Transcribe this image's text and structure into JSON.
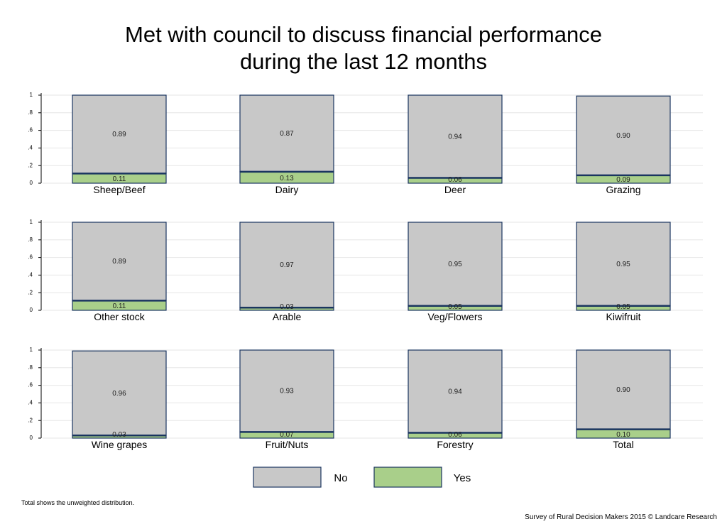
{
  "title_line1": "Met with council to discuss financial performance",
  "title_line2": "during the last 12 months",
  "footnote": "Total shows the unweighted distribution.",
  "source": "Survey of Rural Decision Makers 2015 © Landcare Research",
  "chart_data": {
    "type": "bar",
    "stacked": true,
    "layout": "small-multiples 3x4",
    "ylim": [
      0,
      1
    ],
    "yticks": [
      0,
      0.2,
      0.4,
      0.6,
      0.8,
      1
    ],
    "ytick_labels": [
      "0",
      ".2",
      ".4",
      ".6",
      ".8",
      "1"
    ],
    "grid": true,
    "legend_position": "bottom",
    "colors": {
      "No": "#c8c8c8",
      "Yes": "#a9cf8a",
      "border": "#1a3560"
    },
    "legend": [
      "No",
      "Yes"
    ],
    "panels": [
      {
        "label": "Sheep/Beef",
        "yes": 0.11,
        "no": 0.89,
        "yes_label": "0.11",
        "no_label": "0.89"
      },
      {
        "label": "Dairy",
        "yes": 0.13,
        "no": 0.87,
        "yes_label": "0.13",
        "no_label": "0.87"
      },
      {
        "label": "Deer",
        "yes": 0.06,
        "no": 0.94,
        "yes_label": "0.06",
        "no_label": "0.94"
      },
      {
        "label": "Grazing",
        "yes": 0.09,
        "no": 0.9,
        "yes_label": "0.09",
        "no_label": "0.90"
      },
      {
        "label": "Other stock",
        "yes": 0.11,
        "no": 0.89,
        "yes_label": "0.11",
        "no_label": "0.89"
      },
      {
        "label": "Arable",
        "yes": 0.03,
        "no": 0.97,
        "yes_label": "0.03",
        "no_label": "0.97"
      },
      {
        "label": "Veg/Flowers",
        "yes": 0.05,
        "no": 0.95,
        "yes_label": "0.05",
        "no_label": "0.95"
      },
      {
        "label": "Kiwifruit",
        "yes": 0.05,
        "no": 0.95,
        "yes_label": "0.05",
        "no_label": "0.95"
      },
      {
        "label": "Wine grapes",
        "yes": 0.03,
        "no": 0.96,
        "yes_label": "0.03",
        "no_label": "0.96"
      },
      {
        "label": "Fruit/Nuts",
        "yes": 0.07,
        "no": 0.93,
        "yes_label": "0.07",
        "no_label": "0.93"
      },
      {
        "label": "Forestry",
        "yes": 0.06,
        "no": 0.94,
        "yes_label": "0.06",
        "no_label": "0.94"
      },
      {
        "label": "Total",
        "yes": 0.1,
        "no": 0.9,
        "yes_label": "0.10",
        "no_label": "0.90"
      }
    ]
  }
}
